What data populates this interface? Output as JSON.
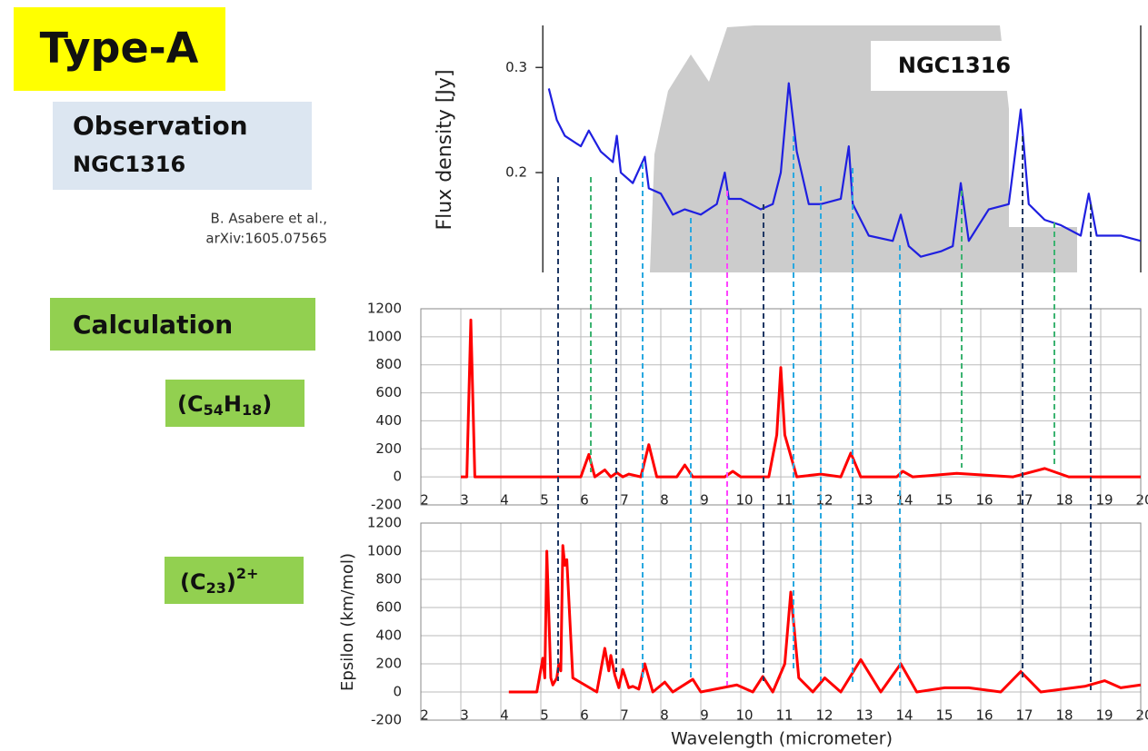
{
  "slide": {
    "badge": "Type-A",
    "observation": "Observation",
    "target": "NGC1316",
    "citation": [
      "B. Asabere et al.,",
      "arXiv:1605.07565"
    ],
    "calculation": "Calculation",
    "formula_1": [
      "(C",
      "54",
      "H",
      "18",
      ")"
    ],
    "formula_2": [
      "(C",
      "23",
      ")",
      "2+"
    ]
  },
  "chart_data": [
    {
      "type": "line",
      "title": "NGC1316",
      "y_label": "Flux density [Jy]",
      "xlim": [
        5.05,
        20
      ],
      "ylim": [
        0.105,
        0.34
      ],
      "yticks": [
        0.2,
        0.3
      ],
      "grid": false,
      "series": [
        {
          "color": "#1f1fe0",
          "x": [
            5.2,
            5.4,
            5.6,
            6.0,
            6.2,
            6.5,
            6.8,
            6.9,
            7.0,
            7.3,
            7.6,
            7.7,
            8.0,
            8.3,
            8.6,
            9.0,
            9.4,
            9.6,
            9.7,
            10.0,
            10.5,
            10.8,
            11.0,
            11.2,
            11.4,
            11.7,
            12.0,
            12.5,
            12.7,
            12.8,
            13.2,
            13.8,
            14.0,
            14.2,
            14.5,
            15.0,
            15.3,
            15.5,
            15.7,
            16.2,
            16.7,
            17.0,
            17.2,
            17.6,
            18.0,
            18.5,
            18.7,
            18.9,
            19.5,
            20
          ],
          "values": [
            0.28,
            0.25,
            0.235,
            0.225,
            0.24,
            0.22,
            0.21,
            0.235,
            0.2,
            0.19,
            0.215,
            0.185,
            0.18,
            0.16,
            0.165,
            0.16,
            0.17,
            0.2,
            0.175,
            0.175,
            0.165,
            0.17,
            0.2,
            0.285,
            0.22,
            0.17,
            0.17,
            0.175,
            0.225,
            0.17,
            0.14,
            0.135,
            0.16,
            0.13,
            0.12,
            0.125,
            0.13,
            0.19,
            0.135,
            0.165,
            0.17,
            0.26,
            0.17,
            0.155,
            0.15,
            0.14,
            0.18,
            0.14,
            0.14,
            0.135
          ]
        }
      ]
    },
    {
      "type": "line",
      "xlim": [
        2,
        20
      ],
      "ylim": [
        -200,
        1200
      ],
      "xticks": [
        2,
        3,
        4,
        5,
        6,
        7,
        8,
        9,
        10,
        11,
        12,
        13,
        14,
        15,
        16,
        17,
        18,
        19,
        20
      ],
      "yticks": [
        -200,
        0,
        200,
        400,
        600,
        800,
        1000,
        1200
      ],
      "grid": true,
      "series": [
        {
          "color": "#ff0000",
          "x": [
            3.0,
            3.15,
            3.25,
            3.35,
            6.0,
            6.2,
            6.35,
            6.6,
            6.75,
            6.9,
            7.05,
            7.2,
            7.5,
            7.7,
            7.9,
            8.4,
            8.6,
            8.8,
            9.6,
            9.8,
            10.0,
            10.7,
            10.9,
            11.0,
            11.1,
            11.4,
            12.0,
            12.5,
            12.75,
            13.0,
            13.9,
            14.05,
            14.3,
            15.4,
            16.8,
            17.6,
            18.2,
            20
          ],
          "values": [
            0,
            0,
            1120,
            0,
            0,
            160,
            0,
            50,
            0,
            30,
            0,
            20,
            0,
            230,
            0,
            0,
            85,
            0,
            0,
            40,
            0,
            0,
            300,
            780,
            300,
            0,
            20,
            0,
            170,
            0,
            0,
            40,
            0,
            25,
            0,
            60,
            0,
            0
          ]
        }
      ]
    },
    {
      "type": "line",
      "x_label": "Wavelength (micrometer)",
      "y_label": "Epsilon (km/mol)",
      "xlim": [
        2,
        20
      ],
      "ylim": [
        -200,
        1200
      ],
      "xticks": [
        2,
        3,
        4,
        5,
        6,
        7,
        8,
        9,
        10,
        11,
        12,
        13,
        14,
        15,
        16,
        17,
        18,
        19,
        20
      ],
      "yticks": [
        -200,
        0,
        200,
        400,
        600,
        800,
        1000,
        1200
      ],
      "grid": true,
      "series": [
        {
          "color": "#ff0000",
          "x": [
            4.2,
            4.9,
            5.05,
            5.1,
            5.15,
            5.25,
            5.3,
            5.4,
            5.45,
            5.5,
            5.55,
            5.6,
            5.65,
            5.8,
            6.4,
            6.6,
            6.7,
            6.75,
            6.85,
            6.95,
            7.05,
            7.2,
            7.3,
            7.45,
            7.6,
            7.8,
            8.1,
            8.3,
            8.8,
            9.0,
            9.9,
            10.3,
            10.55,
            10.8,
            11.1,
            11.25,
            11.45,
            11.8,
            12.1,
            12.5,
            13.0,
            13.5,
            14.0,
            14.4,
            15.1,
            15.7,
            16.5,
            17.0,
            17.5,
            18.6,
            19.1,
            19.5,
            20
          ],
          "values": [
            0,
            0,
            240,
            100,
            1000,
            100,
            50,
            100,
            200,
            150,
            1040,
            900,
            940,
            100,
            0,
            310,
            150,
            260,
            120,
            30,
            160,
            30,
            40,
            20,
            200,
            0,
            70,
            0,
            90,
            0,
            50,
            0,
            110,
            0,
            200,
            710,
            100,
            0,
            100,
            0,
            230,
            0,
            200,
            0,
            30,
            30,
            0,
            145,
            0,
            40,
            80,
            30,
            50
          ]
        }
      ]
    }
  ]
}
